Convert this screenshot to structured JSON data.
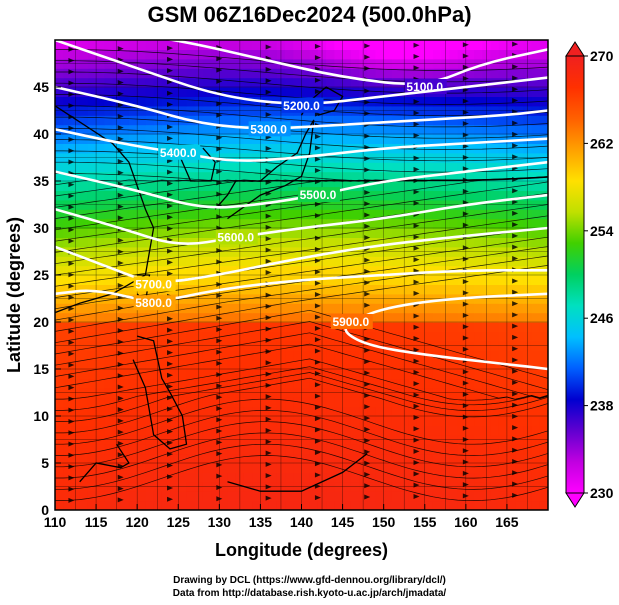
{
  "title": "GSM 06Z16Dec2024 (500.0hPa)",
  "credits": {
    "line1": "Drawing by DCL (https://www.gfd-dennou.org/library/dcl/)",
    "line2": "Data from http://database.rish.kyoto-u.ac.jp/arch/jmadata/"
  },
  "chart_data": {
    "type": "heatmap",
    "xlabel": "Longitude (degrees)",
    "ylabel": "Latitude  (degrees)",
    "xlim": [
      110,
      170
    ],
    "ylim": [
      0,
      50
    ],
    "x_ticks": [
      110,
      115,
      120,
      125,
      130,
      135,
      140,
      145,
      150,
      155,
      160,
      165
    ],
    "y_ticks": [
      0,
      5,
      10,
      15,
      20,
      25,
      30,
      35,
      40,
      45
    ],
    "colorbar": {
      "min": 230,
      "max": 270,
      "ticks": [
        230,
        238,
        246,
        254,
        262,
        270
      ],
      "colors": [
        "#ff00ff",
        "#c000e0",
        "#6000d0",
        "#0000d0",
        "#0060ff",
        "#00c0ff",
        "#00e0c0",
        "#00d060",
        "#40d000",
        "#c0e000",
        "#ffe000",
        "#ffa000",
        "#ff6000",
        "#ff3000",
        "#f02020"
      ]
    },
    "height_contours": [
      {
        "label": "5100.0",
        "label_lon": 151,
        "points": [
          [
            110,
            52
          ],
          [
            125,
            50
          ],
          [
            135,
            48
          ],
          [
            145,
            46
          ],
          [
            155,
            45
          ],
          [
            162,
            47.5
          ],
          [
            170,
            49
          ]
        ]
      },
      {
        "label": "5200.0",
        "label_lon": 139,
        "points": [
          [
            110,
            50
          ],
          [
            120,
            47
          ],
          [
            130,
            44
          ],
          [
            140,
            43
          ],
          [
            150,
            44
          ],
          [
            160,
            45
          ],
          [
            170,
            46
          ]
        ]
      },
      {
        "label": "5300.0",
        "label_lon": 133,
        "points": [
          [
            110,
            45
          ],
          [
            120,
            43
          ],
          [
            128,
            41
          ],
          [
            136,
            40.5
          ],
          [
            145,
            41
          ],
          [
            155,
            41.5
          ],
          [
            165,
            42
          ],
          [
            170,
            42.5
          ]
        ]
      },
      {
        "label": "5400.0",
        "label_lon": 125,
        "points": [
          [
            110,
            40.5
          ],
          [
            118,
            39
          ],
          [
            125,
            38
          ],
          [
            132,
            37
          ],
          [
            140,
            37.5
          ],
          [
            150,
            38.5
          ],
          [
            160,
            39
          ],
          [
            170,
            39.5
          ]
        ]
      },
      {
        "label": "5500.0",
        "label_lon": 146,
        "points": [
          [
            110,
            36
          ],
          [
            120,
            34
          ],
          [
            128,
            32
          ],
          [
            135,
            32.5
          ],
          [
            142,
            33.5
          ],
          [
            150,
            35
          ],
          [
            160,
            36
          ],
          [
            170,
            37
          ]
        ]
      },
      {
        "label": "5600.0",
        "label_lon": 131,
        "points": [
          [
            110,
            32
          ],
          [
            118,
            30
          ],
          [
            125,
            28
          ],
          [
            132,
            29
          ],
          [
            140,
            30
          ],
          [
            150,
            31
          ],
          [
            160,
            32.5
          ],
          [
            170,
            33.5
          ]
        ]
      },
      {
        "label": "5700.0",
        "label_lon": 126,
        "points": [
          [
            110,
            28
          ],
          [
            116,
            26
          ],
          [
            122,
            24
          ],
          [
            130,
            25
          ],
          [
            138,
            26.5
          ],
          [
            148,
            28
          ],
          [
            158,
            29
          ],
          [
            170,
            30
          ]
        ]
      },
      {
        "label": "5800.0",
        "label_lon": 122,
        "points": [
          [
            110,
            23
          ],
          [
            115,
            23.5
          ],
          [
            122,
            22
          ],
          [
            130,
            23.5
          ],
          [
            140,
            24.5
          ],
          [
            150,
            25
          ],
          [
            160,
            25.5
          ],
          [
            170,
            25.5
          ]
        ]
      },
      {
        "label": "5900.0",
        "label_lon": 146,
        "points": [
          [
            170,
            23
          ],
          [
            158,
            22.5
          ],
          [
            150,
            21.5
          ],
          [
            146,
            20
          ],
          [
            145,
            19
          ],
          [
            148,
            17.5
          ],
          [
            155,
            16.5
          ],
          [
            165,
            15.5
          ],
          [
            170,
            15
          ]
        ]
      }
    ]
  }
}
